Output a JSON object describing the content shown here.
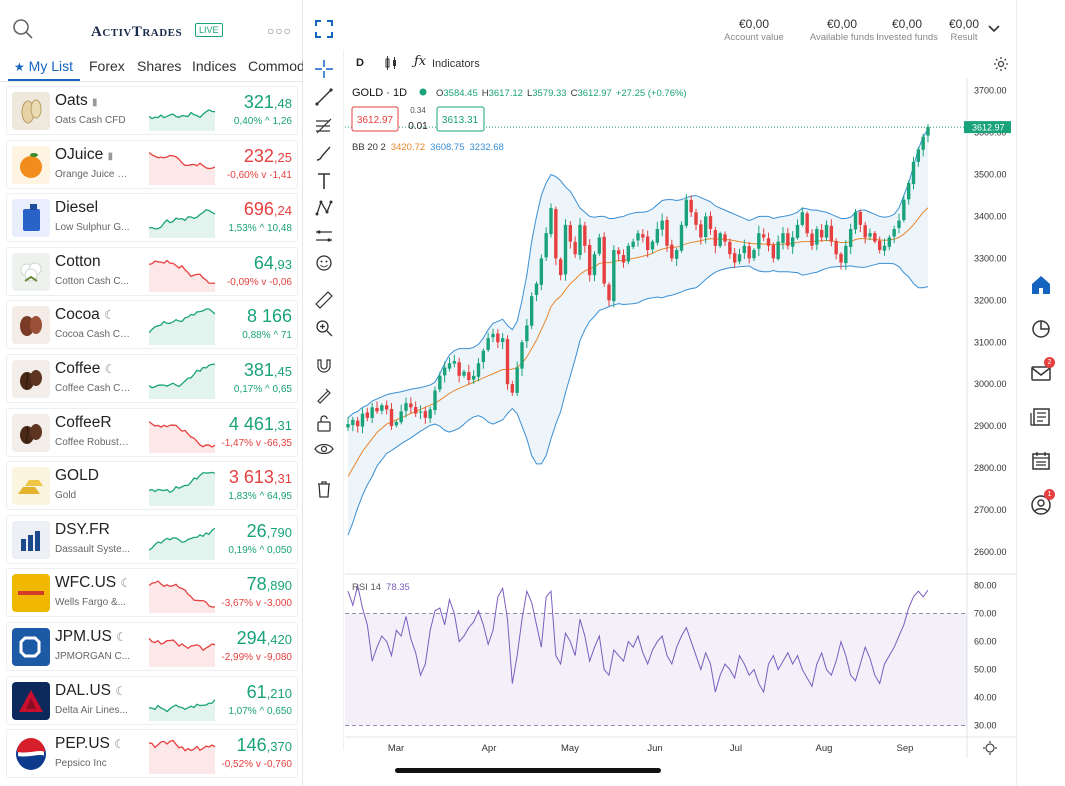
{
  "brand": {
    "logo": "ActivTrades",
    "live": "LIVE"
  },
  "tabs": [
    "My List",
    "Forex",
    "Shares",
    "Indices",
    "Commodities"
  ],
  "colors": {
    "accent": "#1565c0",
    "up": "#1aa37a",
    "down": "#e5403f",
    "bb_mid": "#e8862b",
    "bb_band": "#3a8fd4",
    "rsi": "#7b5dbf"
  },
  "watchlist": [
    {
      "name": "Oats",
      "tag": "lock-icon",
      "sub": "Oats Cash CFD",
      "int": "321",
      "dec": ",48",
      "pct": "0,40%",
      "chg": "1,26",
      "dir": "up",
      "icon": "oats-icon"
    },
    {
      "name": "OJuice",
      "tag": "lock-icon",
      "sub": "Orange Juice C...",
      "int": "232",
      "dec": ",25",
      "pct": "-0,60%",
      "chg": "-1,41",
      "dir": "down",
      "icon": "orange-icon"
    },
    {
      "name": "Diesel",
      "tag": "",
      "sub": "Low Sulphur G...",
      "int": "696",
      "dec": ",24",
      "pct": "1,53%",
      "chg": "10,48",
      "dir": "up",
      "icon": "fuel-can-icon",
      "pricedir": "down"
    },
    {
      "name": "Cotton",
      "tag": "",
      "sub": "Cotton Cash C...",
      "int": "64",
      "dec": ",93",
      "pct": "-0,09%",
      "chg": "-0,06",
      "dir": "down",
      "icon": "cotton-icon",
      "pricedir": "up"
    },
    {
      "name": "Cocoa",
      "tag": "moon-icon",
      "sub": "Cocoa Cash CFD",
      "int": "8 166",
      "dec": "",
      "pct": "0,88%",
      "chg": "71",
      "dir": "up",
      "icon": "cocoa-icon"
    },
    {
      "name": "Coffee",
      "tag": "moon-icon",
      "sub": "Coffee Cash CFD",
      "int": "381",
      "dec": ",45",
      "pct": "0,17%",
      "chg": "0,65",
      "dir": "up",
      "icon": "coffee-icon"
    },
    {
      "name": "CoffeeR",
      "tag": "",
      "sub": "Coffee Robusta...",
      "int": "4 461",
      "dec": ",31",
      "pct": "-1,47%",
      "chg": "-66,35",
      "dir": "down",
      "icon": "coffee-icon",
      "pricedir": "up"
    },
    {
      "name": "GOLD",
      "tag": "",
      "sub": "Gold",
      "int": "3 613",
      "dec": ",31",
      "pct": "1,83%",
      "chg": "64,95",
      "dir": "up",
      "icon": "gold-bars-icon",
      "pricedir": "down"
    },
    {
      "name": "DSY.FR",
      "tag": "",
      "sub": "Dassault Syste...",
      "int": "26",
      "dec": ",790",
      "pct": "0,19%",
      "chg": "0,050",
      "dir": "up",
      "icon": "dassault-logo-icon"
    },
    {
      "name": "WFC.US",
      "tag": "moon-icon",
      "sub": "Wells Fargo &...",
      "int": "78",
      "dec": ",890",
      "pct": "-3,67%",
      "chg": "-3,000",
      "dir": "down",
      "icon": "wells-fargo-logo-icon",
      "pricedir": "up"
    },
    {
      "name": "JPM.US",
      "tag": "moon-icon",
      "sub": "JPMORGAN C...",
      "int": "294",
      "dec": ",420",
      "pct": "-2,99%",
      "chg": "-9,080",
      "dir": "down",
      "icon": "jpmorgan-logo-icon",
      "pricedir": "up"
    },
    {
      "name": "DAL.US",
      "tag": "moon-icon",
      "sub": "Delta Air Lines...",
      "int": "61",
      "dec": ",210",
      "pct": "1,07%",
      "chg": "0,650",
      "dir": "up",
      "icon": "delta-logo-icon"
    },
    {
      "name": "PEP.US",
      "tag": "moon-icon",
      "sub": "Pepsico Inc",
      "int": "146",
      "dec": ",370",
      "pct": "-0,52%",
      "chg": "-0,760",
      "dir": "down",
      "icon": "pepsi-logo-icon",
      "pricedir": "up"
    }
  ],
  "account": [
    {
      "value": "€0,00",
      "label": "Account value"
    },
    {
      "value": "€0,00",
      "label": "Available funds"
    },
    {
      "value": "€0,00",
      "label": "Invested funds"
    },
    {
      "value": "€0,00",
      "label": "Result"
    }
  ],
  "toolbar": {
    "interval": "D",
    "indicators": "Indicators"
  },
  "legend": {
    "symbol": "GOLD · 1D",
    "ohlc": {
      "o": "3584.45",
      "h": "3617.12",
      "l": "3579.33",
      "c": "3612.97",
      "chg": "+27.25 (+0.76%)"
    },
    "sell": "3612.97",
    "buy": "3613.31",
    "spread": "0.34",
    "size": "0.01",
    "bb": {
      "label": "BB 20 2",
      "mid": "3420.72",
      "upper": "3608.75",
      "lower": "3232.68"
    },
    "rsi": {
      "label": "RSI 14",
      "value": "78.35"
    }
  },
  "chart_data": [
    {
      "type": "candlestick",
      "title": "GOLD · 1D",
      "x_labels": [
        "Mar",
        "Apr",
        "May",
        "Jun",
        "Jul",
        "Aug",
        "Sep"
      ],
      "ylim": [
        2550,
        3730
      ],
      "y_ticks": [
        "3700.00",
        "3600.00",
        "3500.00",
        "3400.00",
        "3300.00",
        "3200.00",
        "3100.00",
        "3000.00",
        "2900.00",
        "2800.00",
        "2700.00",
        "2600.00"
      ],
      "last_price": "3612.97",
      "close": [
        2905,
        2915,
        2900,
        2930,
        2920,
        2945,
        2935,
        2950,
        2940,
        2900,
        2910,
        2935,
        2955,
        2945,
        2930,
        2935,
        2920,
        2940,
        2985,
        3020,
        3040,
        3050,
        3055,
        3020,
        3030,
        3010,
        3020,
        3050,
        3080,
        3110,
        3120,
        3100,
        3110,
        3000,
        2980,
        3040,
        3100,
        3140,
        3210,
        3240,
        3300,
        3360,
        3420,
        3300,
        3260,
        3380,
        3340,
        3310,
        3380,
        3330,
        3260,
        3310,
        3350,
        3240,
        3200,
        3320,
        3310,
        3290,
        3330,
        3340,
        3360,
        3350,
        3320,
        3340,
        3370,
        3390,
        3330,
        3300,
        3320,
        3380,
        3440,
        3410,
        3380,
        3350,
        3400,
        3370,
        3330,
        3360,
        3340,
        3310,
        3290,
        3310,
        3330,
        3300,
        3320,
        3360,
        3350,
        3330,
        3300,
        3340,
        3360,
        3330,
        3350,
        3380,
        3410,
        3360,
        3330,
        3370,
        3350,
        3380,
        3340,
        3310,
        3290,
        3330,
        3370,
        3410,
        3380,
        3350,
        3360,
        3340,
        3320,
        3330,
        3350,
        3370,
        3390,
        3440,
        3480,
        3530,
        3560,
        3590,
        3612.97
      ],
      "bb_mid": [
        2780,
        2800,
        2820,
        2840,
        2855,
        2870,
        2885,
        2895,
        2905,
        2910,
        2915,
        2920,
        2925,
        2930,
        2935,
        2940,
        2945,
        2950,
        2955,
        2962,
        2970,
        2978,
        2985,
        2990,
        2995,
        3000,
        3005,
        3010,
        3015,
        3020,
        3025,
        3030,
        3035,
        3035,
        3036,
        3040,
        3050,
        3065,
        3085,
        3105,
        3130,
        3155,
        3185,
        3200,
        3210,
        3225,
        3240,
        3250,
        3262,
        3270,
        3275,
        3280,
        3288,
        3290,
        3290,
        3292,
        3295,
        3295,
        3298,
        3300,
        3302,
        3305,
        3308,
        3312,
        3318,
        3322,
        3325,
        3326,
        3327,
        3330,
        3335,
        3338,
        3340,
        3342,
        3345,
        3347,
        3346,
        3346,
        3345,
        3344,
        3342,
        3340,
        3338,
        3336,
        3335,
        3335,
        3334,
        3334,
        3333,
        3333,
        3334,
        3335,
        3336,
        3338,
        3340,
        3340,
        3340,
        3341,
        3342,
        3343,
        3342,
        3340,
        3338,
        3338,
        3340,
        3345,
        3347,
        3347,
        3346,
        3345,
        3344,
        3343,
        3344,
        3346,
        3350,
        3358,
        3368,
        3380,
        3395,
        3410,
        3420.72
      ],
      "bb_upper": [
        2920,
        2930,
        2935,
        2945,
        2950,
        2960,
        2965,
        2970,
        2975,
        2978,
        2980,
        2982,
        2985,
        2988,
        2990,
        2992,
        2995,
        2998,
        3005,
        3025,
        3050,
        3070,
        3080,
        3085,
        3085,
        3085,
        3088,
        3095,
        3110,
        3130,
        3145,
        3150,
        3155,
        3140,
        3130,
        3150,
        3200,
        3260,
        3340,
        3400,
        3450,
        3480,
        3500,
        3495,
        3485,
        3470,
        3460,
        3440,
        3420,
        3410,
        3400,
        3398,
        3400,
        3400,
        3395,
        3395,
        3398,
        3400,
        3405,
        3408,
        3410,
        3410,
        3412,
        3418,
        3428,
        3438,
        3440,
        3440,
        3438,
        3440,
        3445,
        3448,
        3450,
        3445,
        3440,
        3435,
        3425,
        3420,
        3415,
        3410,
        3405,
        3400,
        3395,
        3390,
        3395,
        3400,
        3400,
        3400,
        3395,
        3398,
        3400,
        3402,
        3405,
        3410,
        3420,
        3418,
        3415,
        3415,
        3412,
        3410,
        3405,
        3400,
        3395,
        3395,
        3398,
        3410,
        3415,
        3415,
        3410,
        3405,
        3400,
        3398,
        3400,
        3405,
        3420,
        3450,
        3480,
        3520,
        3560,
        3590,
        3608.75
      ],
      "bb_lower": [
        2640,
        2670,
        2705,
        2735,
        2760,
        2780,
        2805,
        2820,
        2835,
        2842,
        2850,
        2858,
        2865,
        2872,
        2880,
        2888,
        2895,
        2902,
        2905,
        2900,
        2890,
        2886,
        2890,
        2895,
        2905,
        2915,
        2922,
        2925,
        2920,
        2910,
        2905,
        2910,
        2915,
        2930,
        2942,
        2930,
        2900,
        2870,
        2830,
        2810,
        2810,
        2830,
        2870,
        2905,
        2935,
        2980,
        3020,
        3060,
        3104,
        3130,
        3150,
        3162,
        3176,
        3180,
        3185,
        3189,
        3192,
        3190,
        3191,
        3192,
        3194,
        3200,
        3204,
        3206,
        3208,
        3206,
        3210,
        3212,
        3216,
        3220,
        3225,
        3228,
        3230,
        3239,
        3250,
        3259,
        3267,
        3272,
        3275,
        3278,
        3279,
        3280,
        3281,
        3282,
        3275,
        3270,
        3268,
        3268,
        3271,
        3268,
        3268,
        3268,
        3267,
        3266,
        3260,
        3262,
        3265,
        3267,
        3272,
        3276,
        3279,
        3280,
        3281,
        3281,
        3282,
        3280,
        3279,
        3279,
        3282,
        3285,
        3288,
        3288,
        3288,
        3287,
        3280,
        3266,
        3256,
        3240,
        3230,
        3230,
        3232.68
      ]
    },
    {
      "type": "line",
      "title": "RSI 14",
      "ylim": [
        27,
        82
      ],
      "y_ticks": [
        "80.00",
        "70.00",
        "60.00",
        "50.00",
        "40.00",
        "30.00"
      ],
      "bands": [
        30,
        70
      ],
      "last_value": "78.35",
      "values": [
        78,
        73,
        80,
        72,
        66,
        53,
        58,
        62,
        60,
        55,
        64,
        62,
        69,
        61,
        56,
        48,
        52,
        64,
        71,
        72,
        66,
        75,
        70,
        60,
        62,
        65,
        67,
        71,
        66,
        59,
        64,
        76,
        79,
        68,
        45,
        55,
        68,
        78,
        74,
        66,
        58,
        76,
        78,
        55,
        52,
        63,
        60,
        55,
        68,
        62,
        53,
        58,
        62,
        50,
        48,
        57,
        55,
        53,
        60,
        58,
        62,
        56,
        52,
        57,
        60,
        62,
        55,
        52,
        58,
        62,
        65,
        60,
        55,
        50,
        56,
        52,
        42,
        48,
        52,
        50,
        47,
        55,
        52,
        48,
        50,
        45,
        42,
        52,
        55,
        50,
        53,
        56,
        52,
        55,
        50,
        47,
        44,
        52,
        56,
        50,
        48,
        53,
        60,
        55,
        48,
        46,
        52,
        58,
        54,
        48,
        45,
        52,
        55,
        58,
        62,
        66,
        72,
        76,
        78,
        76,
        78.35
      ]
    }
  ]
}
